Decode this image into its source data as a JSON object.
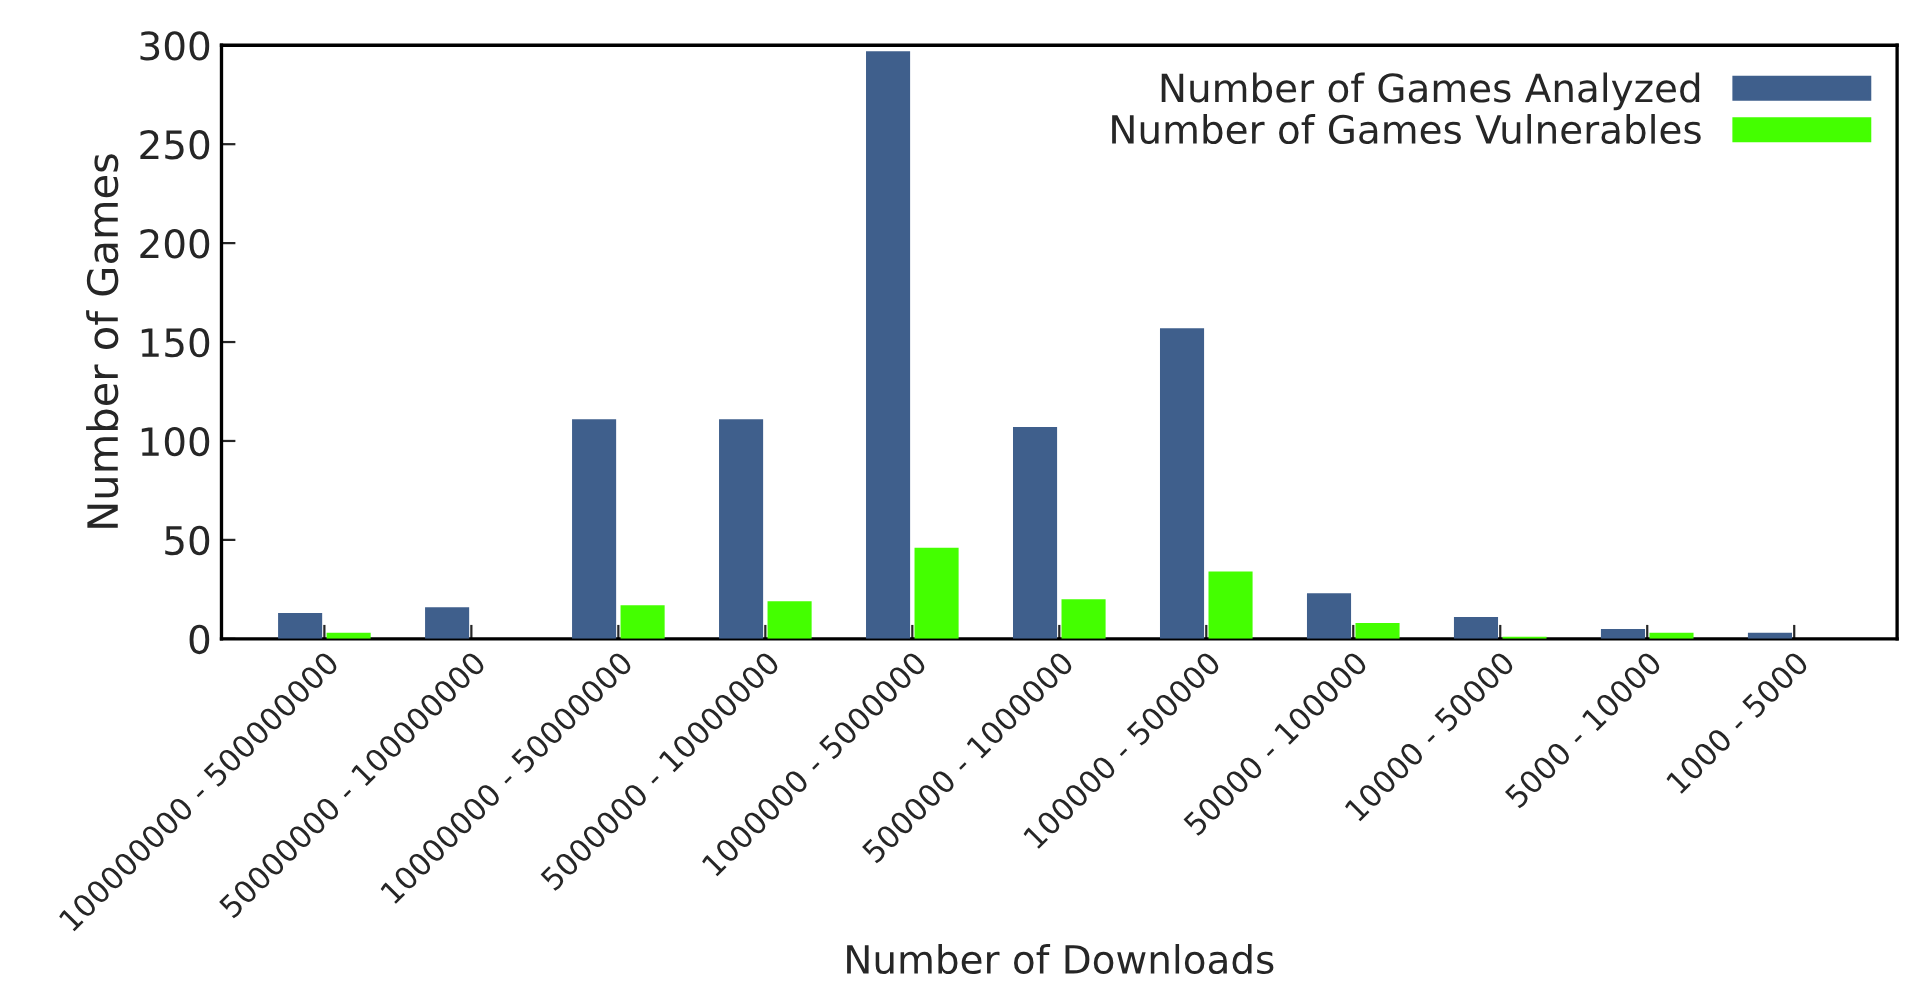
{
  "chart_data": {
    "type": "bar",
    "xlabel": "Number of Downloads",
    "ylabel": "Number of Games",
    "categories": [
      "100000000 - 500000000",
      "50000000 - 100000000",
      "10000000 - 50000000",
      "5000000 - 10000000",
      "1000000 - 5000000",
      "500000 - 1000000",
      "100000 - 500000",
      "50000 - 100000",
      "10000 - 50000",
      "5000 - 10000",
      "1000 - 5000"
    ],
    "series": [
      {
        "name": "Number of Games Analyzed",
        "color": "#3f5f8c",
        "values": [
          13,
          16,
          111,
          111,
          297,
          107,
          157,
          23,
          11,
          5,
          3
        ]
      },
      {
        "name": "Number of Games Vulnerables",
        "color": "#44ff00",
        "values": [
          3,
          null,
          17,
          19,
          46,
          20,
          34,
          8,
          1,
          3,
          null
        ]
      }
    ],
    "ylim": [
      0,
      300
    ],
    "yticks": [
      0,
      50,
      100,
      150,
      200,
      250,
      300
    ],
    "legend": "top right",
    "grid": false
  }
}
